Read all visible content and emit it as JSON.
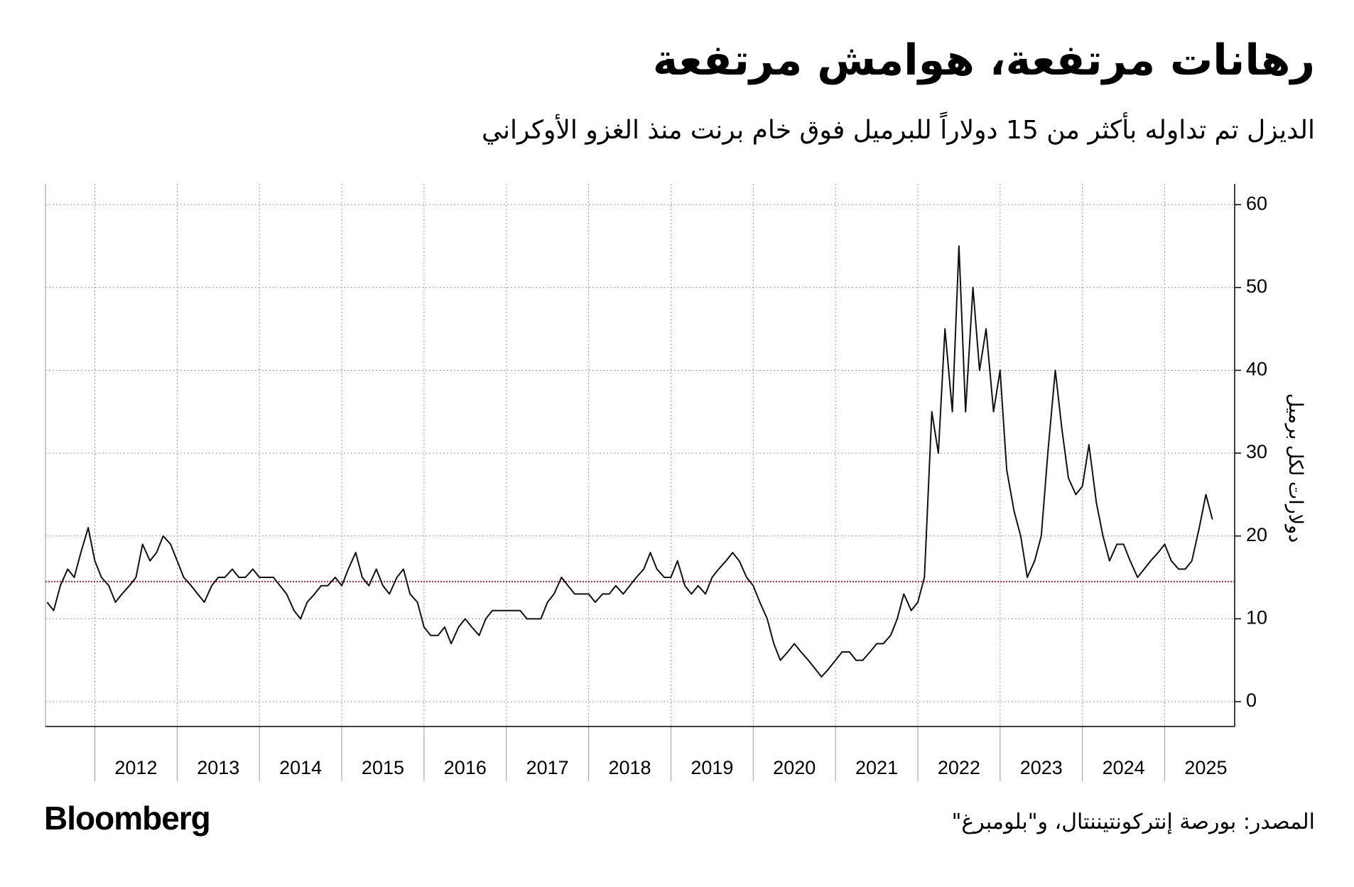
{
  "chart_data": {
    "type": "line",
    "title": "رهانات مرتفعة، هوامش مرتفعة",
    "subtitle": "الديزل تم تداوله بأكثر من 15 دولاراً للبرميل فوق خام برنت منذ الغزو الأوكراني",
    "y_label": "دولارات لكل برميل",
    "source": "المصدر: بورصة إنتركونتيننتال، و\"بلومبرغ\"",
    "brand": "Bloomberg",
    "color": "#111111",
    "reference_line": {
      "value": 14.5,
      "color": "#c0202a"
    },
    "grid": true,
    "xlim": [
      2011.4,
      2025.85
    ],
    "xticks": [
      2012,
      2013,
      2014,
      2015,
      2016,
      2017,
      2018,
      2019,
      2020,
      2021,
      2022,
      2023,
      2024,
      2025
    ],
    "ylim": [
      -3,
      62.5
    ],
    "yticks": [
      0,
      10,
      20,
      30,
      40,
      50,
      60
    ],
    "x": [
      2011.42,
      2011.5,
      2011.58,
      2011.67,
      2011.75,
      2011.83,
      2011.92,
      2012.0,
      2012.08,
      2012.17,
      2012.25,
      2012.33,
      2012.42,
      2012.5,
      2012.58,
      2012.67,
      2012.75,
      2012.83,
      2012.92,
      2013.0,
      2013.08,
      2013.17,
      2013.25,
      2013.33,
      2013.42,
      2013.5,
      2013.58,
      2013.67,
      2013.75,
      2013.83,
      2013.92,
      2014.0,
      2014.08,
      2014.17,
      2014.25,
      2014.33,
      2014.42,
      2014.5,
      2014.58,
      2014.67,
      2014.75,
      2014.83,
      2014.92,
      2015.0,
      2015.08,
      2015.17,
      2015.25,
      2015.33,
      2015.42,
      2015.5,
      2015.58,
      2015.67,
      2015.75,
      2015.83,
      2015.92,
      2016.0,
      2016.08,
      2016.17,
      2016.25,
      2016.33,
      2016.42,
      2016.5,
      2016.58,
      2016.67,
      2016.75,
      2016.83,
      2016.92,
      2017.0,
      2017.08,
      2017.17,
      2017.25,
      2017.33,
      2017.42,
      2017.5,
      2017.58,
      2017.67,
      2017.75,
      2017.83,
      2017.92,
      2018.0,
      2018.08,
      2018.17,
      2018.25,
      2018.33,
      2018.42,
      2018.5,
      2018.58,
      2018.67,
      2018.75,
      2018.83,
      2018.92,
      2019.0,
      2019.08,
      2019.17,
      2019.25,
      2019.33,
      2019.42,
      2019.5,
      2019.58,
      2019.67,
      2019.75,
      2019.83,
      2019.92,
      2020.0,
      2020.08,
      2020.17,
      2020.25,
      2020.33,
      2020.42,
      2020.5,
      2020.58,
      2020.67,
      2020.75,
      2020.83,
      2020.92,
      2021.0,
      2021.08,
      2021.17,
      2021.25,
      2021.33,
      2021.42,
      2021.5,
      2021.58,
      2021.67,
      2021.75,
      2021.83,
      2021.92,
      2022.0,
      2022.08,
      2022.17,
      2022.25,
      2022.33,
      2022.42,
      2022.5,
      2022.58,
      2022.67,
      2022.75,
      2022.83,
      2022.92,
      2023.0,
      2023.08,
      2023.17,
      2023.25,
      2023.33,
      2023.42,
      2023.5,
      2023.58,
      2023.67,
      2023.75,
      2023.83,
      2023.92,
      2024.0,
      2024.08,
      2024.17,
      2024.25,
      2024.33,
      2024.42,
      2024.5,
      2024.58,
      2024.67,
      2024.75,
      2024.83,
      2024.92,
      2025.0,
      2025.08,
      2025.17,
      2025.25,
      2025.33,
      2025.42,
      2025.5,
      2025.58
    ],
    "values": [
      12,
      11,
      14,
      16,
      15,
      18,
      21,
      17,
      15,
      14,
      12,
      13,
      14,
      15,
      19,
      17,
      18,
      20,
      19,
      17,
      15,
      14,
      13,
      12,
      14,
      15,
      15,
      16,
      15,
      15,
      16,
      15,
      15,
      15,
      14,
      13,
      11,
      10,
      12,
      13,
      14,
      14,
      15,
      14,
      16,
      18,
      15,
      14,
      16,
      14,
      13,
      15,
      16,
      13,
      12,
      9,
      8,
      8,
      9,
      7,
      9,
      10,
      9,
      8,
      10,
      11,
      11,
      11,
      11,
      11,
      10,
      10,
      10,
      12,
      13,
      15,
      14,
      13,
      13,
      13,
      12,
      13,
      13,
      14,
      13,
      14,
      15,
      16,
      18,
      16,
      15,
      15,
      17,
      14,
      13,
      14,
      13,
      15,
      16,
      17,
      18,
      17,
      15,
      14,
      12,
      10,
      7,
      5,
      6,
      7,
      6,
      5,
      4,
      3,
      4,
      5,
      6,
      6,
      5,
      5,
      6,
      7,
      7,
      8,
      10,
      13,
      11,
      12,
      15,
      35,
      30,
      45,
      35,
      55,
      35,
      50,
      40,
      45,
      35,
      40,
      28,
      23,
      20,
      15,
      17,
      20,
      30,
      40,
      33,
      27,
      25,
      26,
      31,
      24,
      20,
      17,
      19,
      19,
      17,
      15,
      16,
      17,
      18,
      19,
      17,
      16,
      16,
      17,
      21,
      25,
      22
    ]
  }
}
